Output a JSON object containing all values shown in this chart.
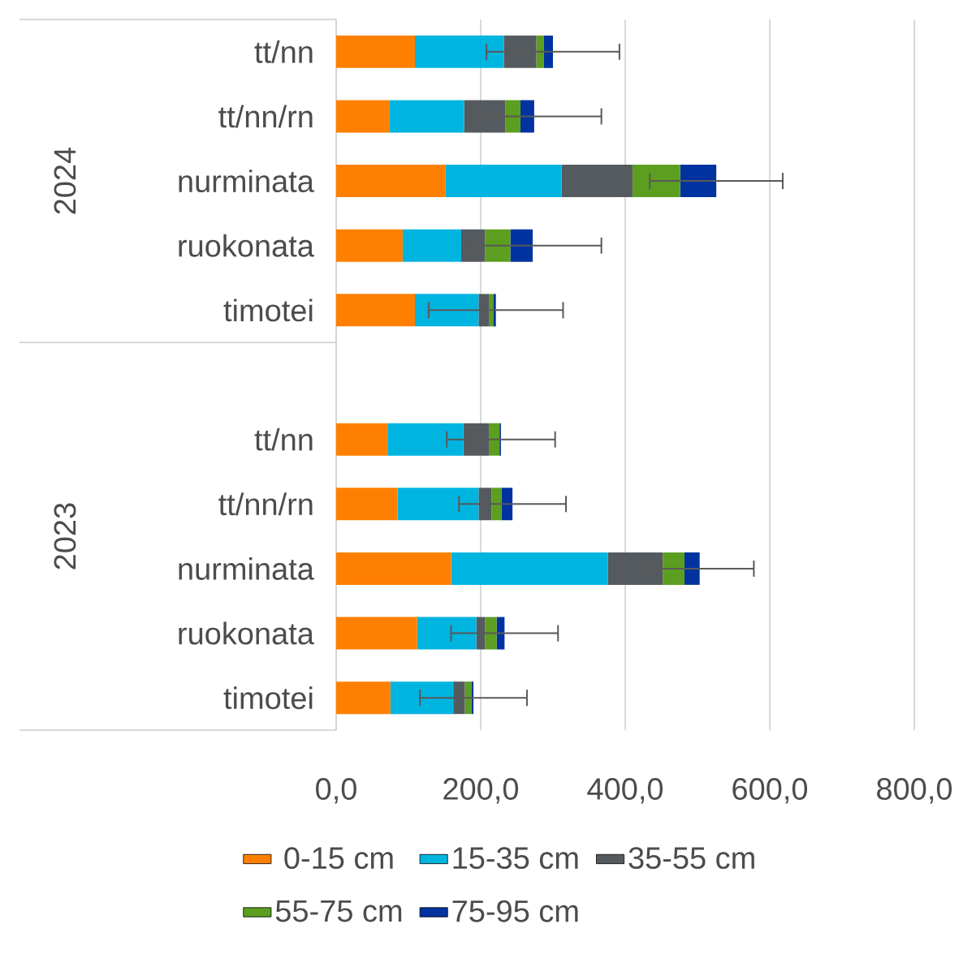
{
  "chart_data": {
    "type": "bar",
    "orientation": "horizontal",
    "stacked": true,
    "categories": [
      "tt/nn",
      "tt/nn/rn",
      "nurminata",
      "ruokonata",
      "timotei",
      null,
      "tt/nn",
      "tt/nn/rn",
      "nurminata",
      "ruokonata",
      "timotei"
    ],
    "annotations": [
      "2024",
      "2023"
    ],
    "series": [
      {
        "name": "0-15 cm",
        "color": "#ff8000",
        "values": [
          109,
          74,
          151,
          92,
          109,
          null,
          71,
          85,
          159,
          112,
          75
        ]
      },
      {
        "name": "15-35 cm",
        "color": "#00b4e0",
        "values": [
          123,
          103,
          161,
          81,
          88,
          null,
          105,
          112,
          217,
          82,
          87
        ]
      },
      {
        "name": "35-55 cm",
        "color": "#555a5e",
        "values": [
          45,
          57,
          98,
          33,
          15,
          null,
          36,
          18,
          76,
          12,
          16
        ]
      },
      {
        "name": "55-75 cm",
        "color": "#5c9e1f",
        "values": [
          10,
          21,
          66,
          35,
          6,
          null,
          14,
          14,
          30,
          16,
          9
        ]
      },
      {
        "name": "75-95 cm",
        "color": "#0033a0",
        "values": [
          13,
          19,
          50,
          31,
          3,
          null,
          2,
          15,
          21,
          11,
          3
        ],
        "errors": [
          92,
          93,
          92,
          95,
          93,
          null,
          75,
          74,
          75,
          74,
          74
        ]
      }
    ],
    "xlim": [
      0,
      800
    ],
    "xticks": [
      {
        "value": 0,
        "label": "0,0"
      },
      {
        "value": 200,
        "label": "200,0"
      },
      {
        "value": 400,
        "label": "400,0"
      },
      {
        "value": 600,
        "label": "600,0"
      },
      {
        "value": 800,
        "label": "800,0"
      }
    ],
    "grid": "x",
    "legend": "bottom"
  }
}
